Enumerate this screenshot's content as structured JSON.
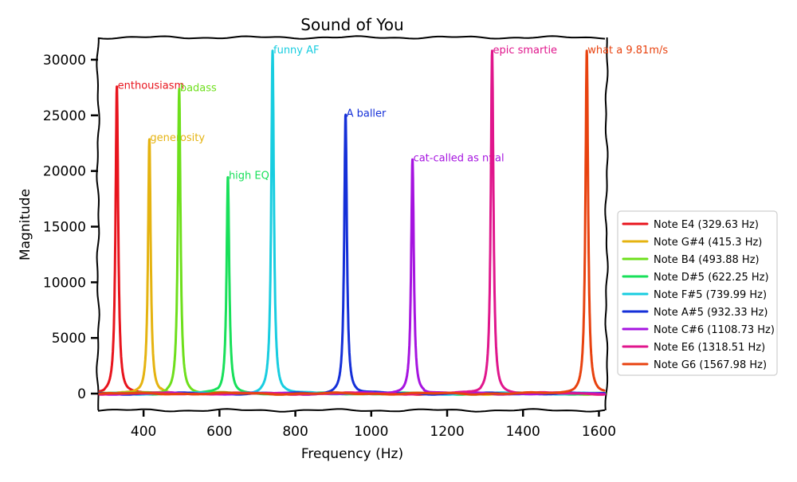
{
  "chart_data": {
    "type": "line",
    "title": "Sound of You",
    "xlabel": "Frequency (Hz)",
    "ylabel": "Magnitude",
    "xlim": [
      280,
      1620
    ],
    "ylim": [
      -1500,
      32000
    ],
    "x_ticks": [
      400,
      600,
      800,
      1000,
      1200,
      1400,
      1600
    ],
    "y_ticks": [
      0,
      5000,
      10000,
      15000,
      20000,
      25000,
      30000
    ],
    "legend_position": "right",
    "series": [
      {
        "name": "Note E4 (329.63 Hz)",
        "frequency": 329.63,
        "peak": 27600,
        "annotation": "enthousiasm",
        "color": "#e8141d"
      },
      {
        "name": "Note G#4 (415.3 Hz)",
        "frequency": 415.3,
        "peak": 22900,
        "annotation": "generosity",
        "color": "#e5b310"
      },
      {
        "name": "Note B4 (493.88 Hz)",
        "frequency": 493.88,
        "peak": 27400,
        "annotation": "badass",
        "color": "#6edf1c"
      },
      {
        "name": "Note D#5 (622.25 Hz)",
        "frequency": 622.25,
        "peak": 19500,
        "annotation": "high EQ",
        "color": "#18e05a"
      },
      {
        "name": "Note F#5 (739.99 Hz)",
        "frequency": 739.99,
        "peak": 30800,
        "annotation": "funny AF",
        "color": "#18cde0"
      },
      {
        "name": "Note A#5 (932.33 Hz)",
        "frequency": 932.33,
        "peak": 25100,
        "annotation": "A baller",
        "color": "#1530d8"
      },
      {
        "name": "Note C#6 (1108.73 Hz)",
        "frequency": 1108.73,
        "peak": 21100,
        "annotation": "cat-called as nyal",
        "color": "#a614e0"
      },
      {
        "name": "Note E6 (1318.51 Hz)",
        "frequency": 1318.51,
        "peak": 30800,
        "annotation": "epic smartie",
        "color": "#e0168c"
      },
      {
        "name": "Note G6 (1567.98 Hz)",
        "frequency": 1567.98,
        "peak": 30800,
        "annotation": "what a 9.81m/s",
        "color": "#e8420f"
      }
    ]
  }
}
